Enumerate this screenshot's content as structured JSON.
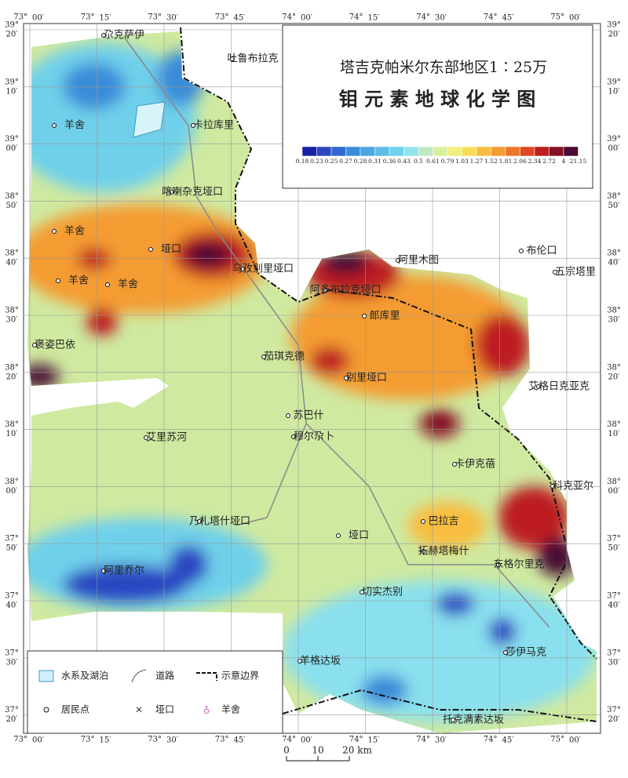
{
  "title_box": {
    "line1": "塔吉克帕米尔东部地区1∶25万",
    "line2": "钼 元 素 地 球 化 学 图",
    "scale": {
      "breaks": [
        0.18,
        0.23,
        0.25,
        0.27,
        0.28,
        0.31,
        0.36,
        0.43,
        0.5,
        0.61,
        0.79,
        1.03,
        1.27,
        1.52,
        1.81,
        2.06,
        2.34,
        2.72,
        4,
        21.15
      ],
      "colors": [
        "#1a1fa6",
        "#2a46c2",
        "#2f68cf",
        "#3a8cd8",
        "#4aa6e0",
        "#5cbde6",
        "#70d2ec",
        "#93e2ec",
        "#bdeac4",
        "#dcef9c",
        "#f2ef80",
        "#f8dc58",
        "#f8bd40",
        "#f49c30",
        "#ee7628",
        "#df4822",
        "#bd1e20",
        "#861024",
        "#4a0a34"
      ]
    }
  },
  "longitudes": [
    {
      "deg": "73°",
      "min": "00′"
    },
    {
      "deg": "73°",
      "min": "15′"
    },
    {
      "deg": "73°",
      "min": "30′"
    },
    {
      "deg": "73°",
      "min": "45′"
    },
    {
      "deg": "74°",
      "min": "00′"
    },
    {
      "deg": "74°",
      "min": "15′"
    },
    {
      "deg": "74°",
      "min": "30′"
    },
    {
      "deg": "74°",
      "min": "45′"
    },
    {
      "deg": "75°",
      "min": "00′"
    }
  ],
  "latitudes": [
    {
      "deg": "39°",
      "min": "20′"
    },
    {
      "deg": "39°",
      "min": "10′"
    },
    {
      "deg": "39°",
      "min": "00′"
    },
    {
      "deg": "38°",
      "min": "50′"
    },
    {
      "deg": "38°",
      "min": "40′"
    },
    {
      "deg": "38°",
      "min": "30′"
    },
    {
      "deg": "38°",
      "min": "20′"
    },
    {
      "deg": "38°",
      "min": "10′"
    },
    {
      "deg": "38°",
      "min": "00′"
    },
    {
      "deg": "37°",
      "min": "50′"
    },
    {
      "deg": "37°",
      "min": "40′"
    },
    {
      "deg": "37°",
      "min": "30′"
    },
    {
      "deg": "37°",
      "min": "20′"
    }
  ],
  "places": [
    "尕克萨伊",
    "吐鲁布拉克",
    "羊舍",
    "卡拉库里",
    "喀喇杂克垭口",
    "羊舍",
    "垭口",
    "乌孜别里垭口",
    "羊舍",
    "羊舍",
    "阿里木图",
    "布伦口",
    "五宗塔里",
    "阿多布拉克垭口",
    "郎库里",
    "褒姿巴依",
    "茄琪克德",
    "别里垭口",
    "艾格日克亚克",
    "苏巴什",
    "穆尔尕卜",
    "艾里苏河",
    "卡伊克蓓",
    "科克亚尔",
    "巴拉吉",
    "乃札塔什垭口",
    "垭口",
    "拓赫塔梅什",
    "东格尔里克",
    "阿里乔尔",
    "切实杰别",
    "莎伊马克",
    "羊格达坂",
    "托克满素达坂"
  ],
  "legend": {
    "items": [
      "水系及湖泊",
      "道路",
      "示意边界",
      "居民点",
      "垭口",
      "羊舍"
    ]
  },
  "scale_bar": {
    "labels": [
      "0",
      "10",
      "20 km"
    ]
  }
}
